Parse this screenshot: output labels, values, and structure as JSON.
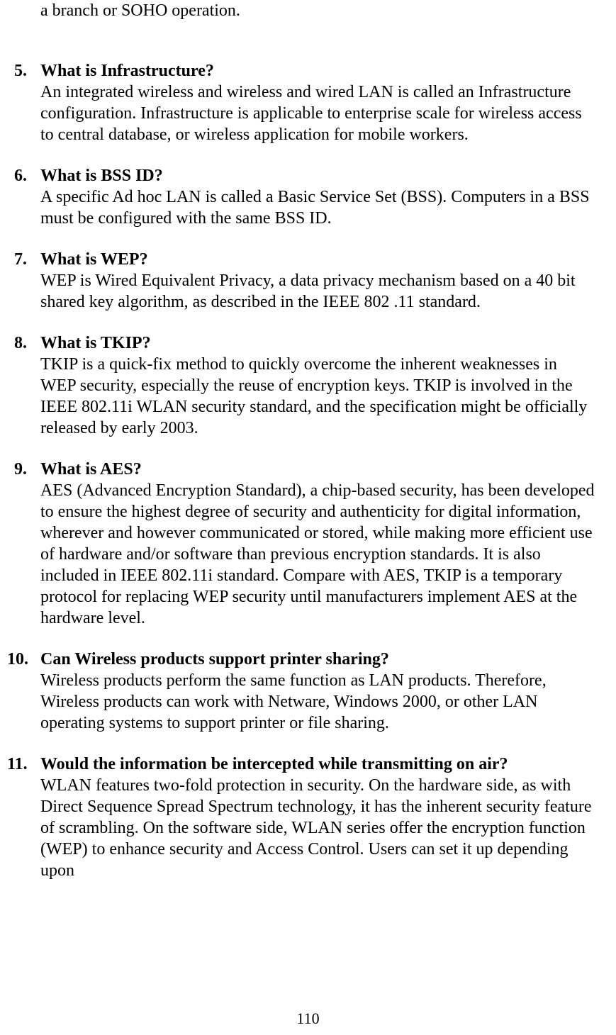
{
  "partialTop": "a branch or SOHO operation.",
  "items": [
    {
      "number": "5.",
      "heading": "What is Infrastructure?",
      "body": "An integrated wireless and wireless and wired LAN is called an Infrastructure configuration. Infrastructure is applicable to enterprise scale for wireless access to central database, or wireless application for mobile workers."
    },
    {
      "number": "6.",
      "heading": "What is BSS ID?",
      "body": "A specific Ad hoc LAN is called a Basic Service Set (BSS). Computers in a BSS must be configured with the same BSS ID."
    },
    {
      "number": "7.",
      "heading": "What is WEP?",
      "body": "WEP is Wired Equivalent Privacy, a data privacy mechanism based on a 40 bit shared key algorithm, as described in the IEEE 802 .11 standard."
    },
    {
      "number": "8.",
      "heading": "What is TKIP?",
      "body": "TKIP is a quick-fix method to quickly overcome the inherent weaknesses in WEP security, especially the reuse of encryption keys. TKIP is involved in the IEEE 802.11i WLAN security standard, and the specification might be officially released by early 2003."
    },
    {
      "number": "9.",
      "heading": "What is AES?",
      "body": "AES (Advanced Encryption Standard), a chip-based security, has been developed to ensure the highest degree of security and authenticity for digital information, wherever and however communicated or stored, while making more efficient use of hardware and/or software than previous encryption standards. It is also included in IEEE 802.11i standard. Compare with AES, TKIP is a temporary protocol for replacing WEP security until manufacturers implement AES at the hardware level."
    },
    {
      "number": "10.",
      "heading": "Can Wireless products support printer sharing?",
      "body": "Wireless products perform the same function as LAN products. Therefore, Wireless products can work with Netware, Windows 2000, or other LAN operating systems to support printer or file sharing."
    },
    {
      "number": "11.",
      "heading": "Would the information be intercepted while transmitting on air?",
      "body": "WLAN features two-fold protection in security. On the hardware side, as with Direct Sequence Spread Spectrum technology, it has the inherent security feature of scrambling. On the software side, WLAN series offer the encryption function (WEP) to enhance security and Access Control. Users can set it up depending upon"
    }
  ],
  "pageNumber": "110"
}
